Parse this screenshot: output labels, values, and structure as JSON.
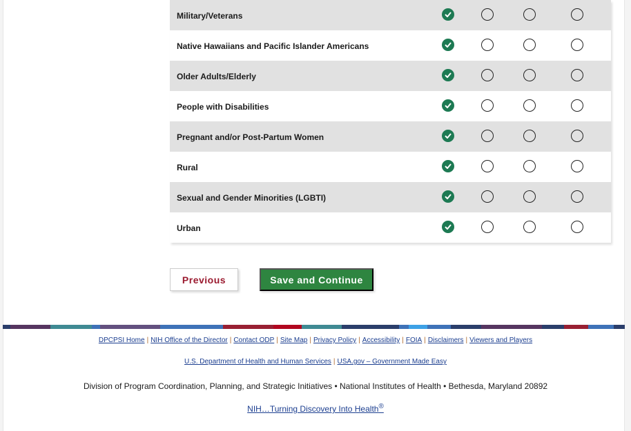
{
  "rows": [
    {
      "label": "Military/Veterans",
      "selected": 0
    },
    {
      "label": "Native Hawaiians and Pacific Islander Americans",
      "selected": 0
    },
    {
      "label": "Older Adults/Elderly",
      "selected": 0
    },
    {
      "label": "People with Disabilities",
      "selected": 0
    },
    {
      "label": "Pregnant and/or Post-Partum Women",
      "selected": 0
    },
    {
      "label": "Rural",
      "selected": 0
    },
    {
      "label": "Sexual and Gender Minorities (LGBTI)",
      "selected": 0
    },
    {
      "label": "Urban",
      "selected": 0
    }
  ],
  "buttons": {
    "previous": "Previous",
    "save": "Save and Continue"
  },
  "colors": {
    "accent_green": "#1d7a53",
    "save_green": "#2e8540",
    "previous_red": "#9b1b30"
  },
  "stripe": [
    "#2b3e6b",
    "#563560",
    "#3f8a93",
    "#3e72b8",
    "#63507f",
    "#3e72b8",
    "#982033",
    "#b1061f",
    "#3f8a93",
    "#2b3e6b",
    "#3e72b8",
    "#3da1e6",
    "#3e72b8",
    "#2b3e6b",
    "#563560",
    "#2b3e6b",
    "#982033",
    "#3e72b8",
    "#2b3e6b"
  ],
  "footer": {
    "links1": [
      "DPCPSI Home",
      "NIH Office of the Director",
      "Contact ODP",
      "Site Map",
      "Privacy Policy",
      "Accessibility",
      "FOIA",
      "Disclaimers",
      "Viewers and Players"
    ],
    "links2": [
      "U.S. Department of Health and Human Services",
      "USA.gov – Government Made Easy"
    ],
    "address": "Division of Program Coordination, Planning, and Strategic Initiatives • National Institutes of Health • Bethesda, Maryland 20892",
    "tagline": "NIH…Turning Discovery Into Health",
    "tagline_mark": "®"
  }
}
